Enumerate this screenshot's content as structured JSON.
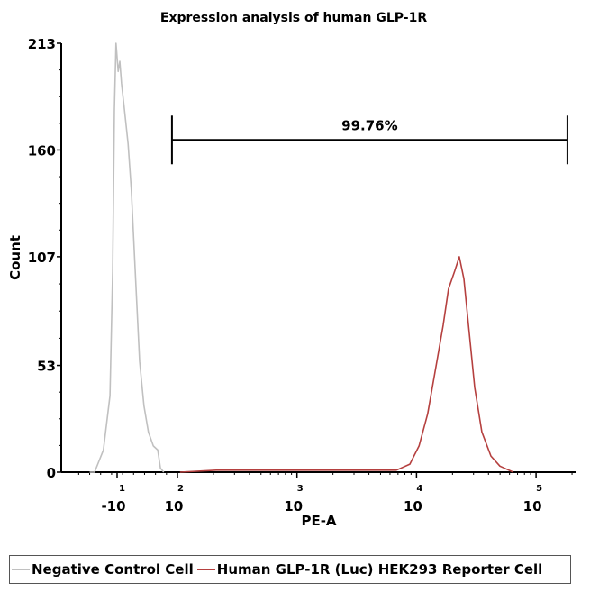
{
  "chart_data": {
    "type": "line",
    "title": "Expression analysis of human GLP-1R",
    "xlabel": "PE-A",
    "ylabel": "Count",
    "x_scale": "biexponential",
    "xlim": [
      -112,
      217000
    ],
    "ylim": [
      0,
      213
    ],
    "yticks": [
      0,
      53,
      107,
      160,
      213
    ],
    "xticks": [
      {
        "value": -10,
        "base": "-10",
        "exp": "1"
      },
      {
        "value": 100,
        "base": "10",
        "exp": "2"
      },
      {
        "value": 1000,
        "base": "10",
        "exp": "3"
      },
      {
        "value": 10000,
        "base": "10",
        "exp": "4"
      },
      {
        "value": 100000,
        "base": "10",
        "exp": "5"
      }
    ],
    "grid": false,
    "legend_position": "bottom",
    "gate": {
      "label": "99.76%",
      "x_start": 90,
      "x_end": 183000,
      "y": 165
    },
    "series": [
      {
        "name": "Negative Control Cell",
        "color": "#c0c0c0",
        "points": [
          [
            -60,
            0
          ],
          [
            -51,
            0
          ],
          [
            -35,
            11
          ],
          [
            -23,
            38
          ],
          [
            -18,
            100
          ],
          [
            -15,
            180
          ],
          [
            -12,
            213
          ],
          [
            -8,
            199
          ],
          [
            -5,
            204
          ],
          [
            -2,
            193
          ],
          [
            3,
            181
          ],
          [
            10,
            163
          ],
          [
            16,
            140
          ],
          [
            23,
            100
          ],
          [
            31,
            55
          ],
          [
            39,
            33
          ],
          [
            47,
            20
          ],
          [
            56,
            13
          ],
          [
            64,
            11
          ],
          [
            69,
            2
          ],
          [
            75,
            0
          ]
        ]
      },
      {
        "name": "Human GLP-1R (Luc) HEK293 Reporter Cell",
        "color": "#b5403f",
        "points": [
          [
            105,
            0
          ],
          [
            211,
            1
          ],
          [
            597,
            1
          ],
          [
            1420,
            1
          ],
          [
            3390,
            1
          ],
          [
            6780,
            1
          ],
          [
            8800,
            4
          ],
          [
            10500,
            13
          ],
          [
            12400,
            29
          ],
          [
            14800,
            55
          ],
          [
            16700,
            73
          ],
          [
            18500,
            91
          ],
          [
            20900,
            100
          ],
          [
            22800,
            107
          ],
          [
            24900,
            96
          ],
          [
            27200,
            73
          ],
          [
            30700,
            42
          ],
          [
            35200,
            20
          ],
          [
            41900,
            8
          ],
          [
            49900,
            3
          ],
          [
            59300,
            1
          ],
          [
            64600,
            0
          ]
        ]
      }
    ]
  }
}
